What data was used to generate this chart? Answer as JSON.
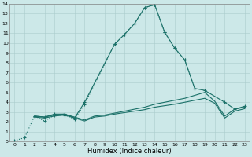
{
  "xlabel": "Humidex (Indice chaleur)",
  "xlim": [
    -0.5,
    23.5
  ],
  "ylim": [
    0,
    14
  ],
  "yticks": [
    0,
    1,
    2,
    3,
    4,
    5,
    6,
    7,
    8,
    9,
    10,
    11,
    12,
    13,
    14
  ],
  "xticks": [
    0,
    1,
    2,
    3,
    4,
    5,
    6,
    7,
    8,
    9,
    10,
    11,
    12,
    13,
    14,
    15,
    16,
    17,
    18,
    19,
    20,
    21,
    22,
    23
  ],
  "bg_color": "#cce8e8",
  "grid_color": "#aacccc",
  "line_color": "#1a7068",
  "series": [
    {
      "x": [
        0,
        1,
        2,
        3,
        4,
        5,
        6,
        7,
        10,
        11,
        12,
        13,
        14,
        15,
        16,
        17,
        18
      ],
      "y": [
        0.1,
        0.4,
        2.6,
        2.1,
        2.7,
        2.7,
        2.3,
        3.8,
        9.9,
        10.9,
        12.0,
        13.6,
        13.9,
        11.1,
        9.5,
        8.3,
        5.4
      ],
      "linestyle": ":",
      "marker": "+"
    },
    {
      "x": [
        2,
        3,
        4,
        5,
        6,
        7,
        10,
        11,
        12,
        13,
        14,
        15,
        16,
        17,
        18,
        19,
        21,
        22,
        23
      ],
      "y": [
        2.6,
        2.5,
        2.8,
        2.8,
        2.4,
        4.0,
        9.9,
        10.9,
        12.0,
        13.6,
        13.9,
        11.1,
        9.5,
        8.3,
        5.4,
        5.2,
        4.0,
        3.3,
        3.6
      ],
      "linestyle": "-",
      "marker": "+"
    },
    {
      "x": [
        2,
        3,
        4,
        5,
        6,
        7,
        8,
        9,
        10,
        11,
        12,
        13,
        14,
        15,
        16,
        17,
        18,
        19,
        20,
        21,
        22,
        23
      ],
      "y": [
        2.6,
        2.5,
        2.7,
        2.8,
        2.5,
        2.2,
        2.6,
        2.7,
        2.9,
        3.1,
        3.3,
        3.5,
        3.8,
        4.0,
        4.2,
        4.4,
        4.7,
        5.0,
        4.1,
        2.6,
        3.3,
        3.5
      ],
      "linestyle": "-",
      "marker": null
    },
    {
      "x": [
        2,
        3,
        4,
        5,
        6,
        7,
        8,
        9,
        10,
        11,
        12,
        13,
        14,
        15,
        16,
        17,
        18,
        19,
        20,
        21,
        22,
        23
      ],
      "y": [
        2.5,
        2.4,
        2.6,
        2.7,
        2.4,
        2.1,
        2.5,
        2.6,
        2.8,
        2.95,
        3.1,
        3.25,
        3.5,
        3.65,
        3.8,
        4.0,
        4.2,
        4.4,
        3.9,
        2.4,
        3.1,
        3.35
      ],
      "linestyle": "-",
      "marker": null
    }
  ]
}
